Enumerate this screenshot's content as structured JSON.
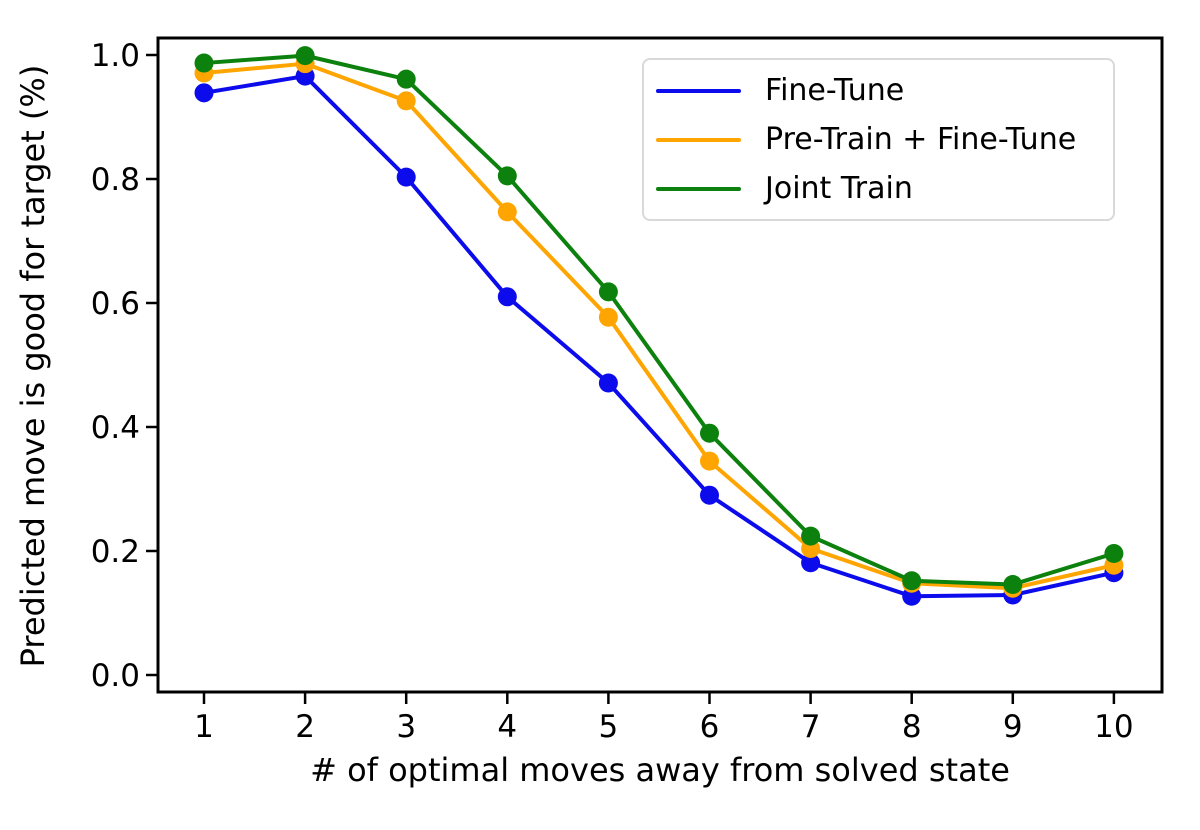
{
  "figure": {
    "background": "#ffffff"
  },
  "chart_data": {
    "type": "line",
    "title": "",
    "xlabel": "# of optimal moves away from solved state",
    "ylabel": "Predicted move is good for target (%)",
    "x": [
      1,
      2,
      3,
      4,
      5,
      6,
      7,
      8,
      9,
      10
    ],
    "series": [
      {
        "name": "Fine-Tune",
        "color": "#0b0beb",
        "values": [
          0.939,
          0.966,
          0.803,
          0.61,
          0.471,
          0.29,
          0.181,
          0.127,
          0.129,
          0.165
        ]
      },
      {
        "name": "Pre-Train + Fine-Tune",
        "color": "#ffa502",
        "values": [
          0.971,
          0.986,
          0.926,
          0.747,
          0.577,
          0.345,
          0.204,
          0.148,
          0.14,
          0.177
        ]
      },
      {
        "name": "Joint Train",
        "color": "#0d810d",
        "values": [
          0.987,
          0.999,
          0.961,
          0.805,
          0.618,
          0.39,
          0.224,
          0.152,
          0.146,
          0.196
        ]
      }
    ],
    "x_tick_labels": [
      "1",
      "2",
      "3",
      "4",
      "5",
      "6",
      "7",
      "8",
      "9",
      "10"
    ],
    "y_ticks": [
      0.0,
      0.2,
      0.4,
      0.6,
      0.8,
      1.0
    ],
    "y_tick_labels": [
      "0.0",
      "0.2",
      "0.4",
      "0.6",
      "0.8",
      "1.0"
    ],
    "xlim": [
      0.55,
      10.47
    ],
    "ylim": [
      -0.027,
      1.024
    ],
    "grid": false,
    "legend_position": "upper right",
    "marker": "circle",
    "spine_color": "#000000"
  }
}
